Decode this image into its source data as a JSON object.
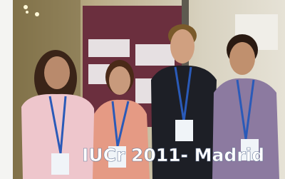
{
  "photo": {
    "caption": "IUCr 2011- Madrid"
  }
}
